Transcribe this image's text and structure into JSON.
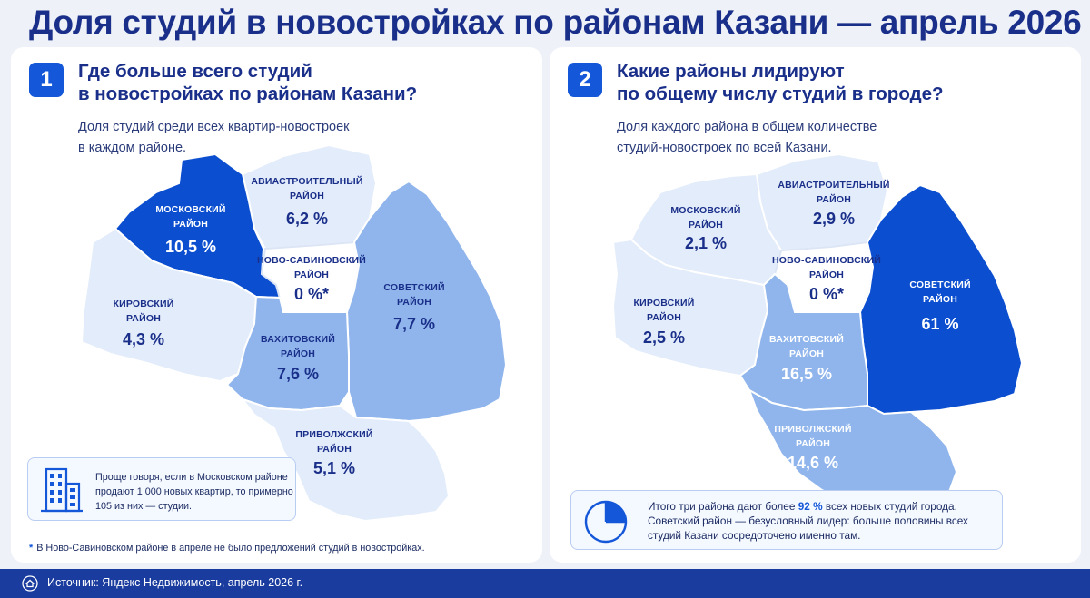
{
  "title": "Доля студий в новостройках по районам Казани — апрель 2026",
  "colors": {
    "accent": "#1457d8",
    "dark": "#0b4ecf",
    "mid": "#8fb5ec",
    "light": "#e3ecfa",
    "text": "#1a2f8a"
  },
  "left_panel": {
    "number": "1",
    "title": "Где больше всего студий\nв новостройках по районам Казани?",
    "subtitle": "Доля студий среди всех квартир-новостроек\nв каждом районе.",
    "districts": {
      "moskovsky": {
        "name1": "МОСКОВСКИЙ",
        "name2": "РАЙОН",
        "value": "10,5 %"
      },
      "aviastroitelny": {
        "name1": "АВИАСТРОИТЕЛЬНЫЙ",
        "name2": "РАЙОН",
        "value": "6,2 %"
      },
      "novo_savinovsky": {
        "name1": "НОВО-САВИНОВСКИЙ",
        "name2": "РАЙОН",
        "value": "0 %*"
      },
      "sovetsky": {
        "name1": "СОВЕТСКИЙ",
        "name2": "РАЙОН",
        "value": "7,7 %"
      },
      "kirovsky": {
        "name1": "КИРОВСКИЙ",
        "name2": "РАЙОН",
        "value": "4,3 %"
      },
      "vakhitovsky": {
        "name1": "ВАХИТОВСКИЙ",
        "name2": "РАЙОН",
        "value": "7,6 %"
      },
      "privolzhsky": {
        "name1": "ПРИВОЛЖСКИЙ",
        "name2": "РАЙОН",
        "value": "5,1 %"
      }
    },
    "info_icon": "building-icon",
    "info_text": "Проще говоря, если в Московском районе продают 1 000 новых квартир, то примерно 105 из них — студии.",
    "footnote_star": "*",
    "footnote": "В Ново-Савиновском районе в апреле не было предложений студий в новостройках."
  },
  "right_panel": {
    "number": "2",
    "title": "Какие районы лидируют\nпо общему числу студий в городе?",
    "subtitle": "Доля каждого района в общем количестве\nстудий-новостроек по всей Казани.",
    "districts": {
      "moskovsky": {
        "name1": "МОСКОВСКИЙ",
        "name2": "РАЙОН",
        "value": "2,1 %"
      },
      "aviastroitelny": {
        "name1": "АВИАСТРОИТЕЛЬНЫЙ",
        "name2": "РАЙОН",
        "value": "2,9 %"
      },
      "novo_savinovsky": {
        "name1": "НОВО-САВИНОВСКИЙ",
        "name2": "РАЙОН",
        "value": "0 %*"
      },
      "sovetsky": {
        "name1": "СОВЕТСКИЙ",
        "name2": "РАЙОН",
        "value": "61 %"
      },
      "kirovsky": {
        "name1": "КИРОВСКИЙ",
        "name2": "РАЙОН",
        "value": "2,5 %"
      },
      "vakhitovsky": {
        "name1": "ВАХИТОВСКИЙ",
        "name2": "РАЙОН",
        "value": "16,5 %"
      },
      "privolzhsky": {
        "name1": "ПРИВОЛЖСКИЙ",
        "name2": "РАЙОН",
        "value": "14,6 %"
      }
    },
    "summary_icon": "pie-chart-icon",
    "summary_text_1": "Итого три района дают более ",
    "summary_highlight": "92 %",
    "summary_text_2": " всех новых студий города. Советский район — безусловный лидер: больше половины всех студий Казани сосредоточено именно там."
  },
  "footer": {
    "icon": "home-icon",
    "source": "Источник: Яндекс Недвижимость, апрель 2026 г."
  }
}
